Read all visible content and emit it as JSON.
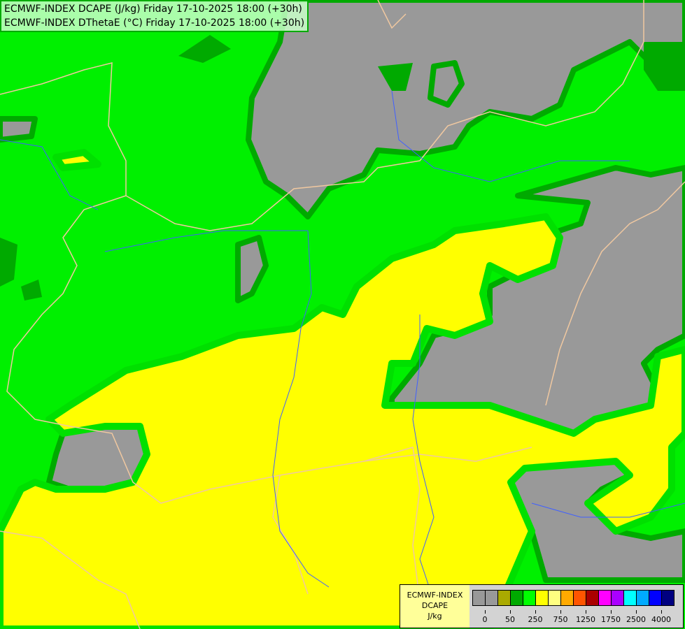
{
  "title": {
    "line1": "ECMWF-INDEX DCAPE (J/kg) Friday 17-10-2025 18:00 (+30h)",
    "line2": "ECMWF-INDEX DThetaE (°C) Friday 17-10-2025 18:00 (+30h)"
  },
  "legend": {
    "model": "ECMWF-INDEX",
    "parameter": "DCAPE",
    "unit": "J/kg",
    "colors": [
      "#999999",
      "#999999",
      "#aaaa00",
      "#00aa00",
      "#00ff00",
      "#ffff00",
      "#ffff80",
      "#ffaa00",
      "#ff5500",
      "#aa0000",
      "#ff00ff",
      "#aa00ff",
      "#00ffff",
      "#00aaff",
      "#0000ff",
      "#000080"
    ],
    "tick_labels": [
      "0",
      "50",
      "250",
      "750",
      "1250",
      "1750",
      "2500",
      "4000"
    ]
  },
  "map_colors": {
    "low_gray": "#999999",
    "green": "#00f000",
    "dark_green": "#00aa00",
    "yellow": "#ffff00",
    "borders": "#f0c8a0",
    "rivers": "#4060ff"
  }
}
